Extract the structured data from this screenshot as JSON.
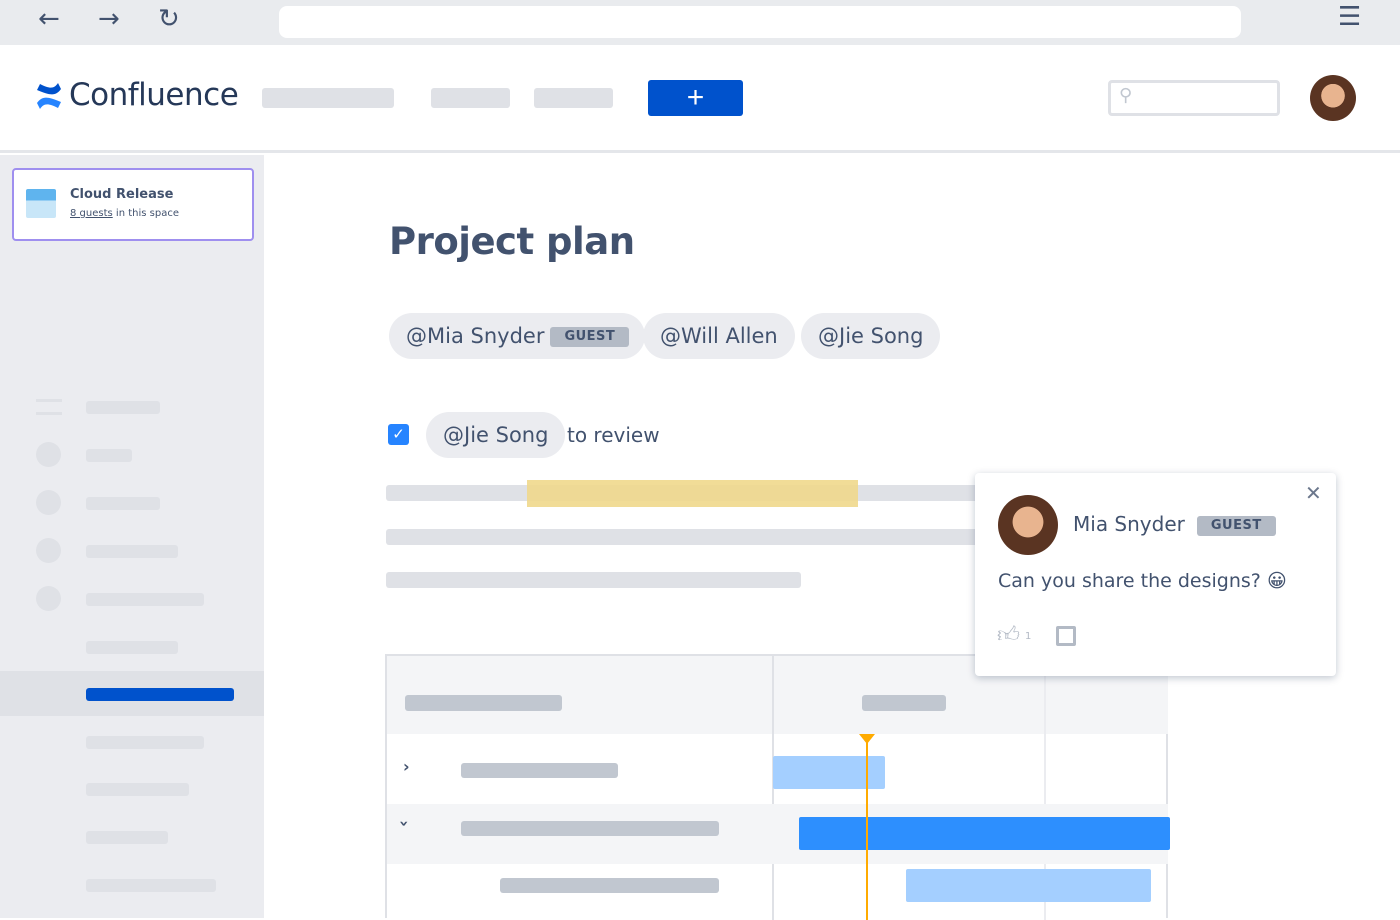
{
  "browser": {
    "back_icon": "arrow-left",
    "forward_icon": "arrow-right",
    "reload_icon": "reload",
    "menu_icon": "hamburger",
    "url": ""
  },
  "header": {
    "logo": "Confluence",
    "create_label": "+",
    "search_placeholder": ""
  },
  "sidebar": {
    "space_name": "Cloud Release",
    "guests_link": "8 guests",
    "guests_suffix": " in this space"
  },
  "page": {
    "title": "Project plan",
    "mentions": [
      {
        "label": "@Mia Snyder",
        "badge": "GUEST"
      },
      {
        "label": "@Will Allen"
      },
      {
        "label": "@Jie Song"
      }
    ],
    "task": {
      "checked": true,
      "mention": "@Jie Song",
      "text": "to review"
    }
  },
  "comment": {
    "author": "Mia Snyder",
    "badge": "GUEST",
    "text": "Can you share the designs?",
    "emoji": "😀",
    "like_count": "1",
    "close": "✕"
  },
  "colors": {
    "primary": "#0052cc",
    "bar_light": "#a4cfff",
    "bar_dark": "#2d8ffe",
    "today_line": "#ffab00",
    "highlight": "#f0d88c"
  }
}
